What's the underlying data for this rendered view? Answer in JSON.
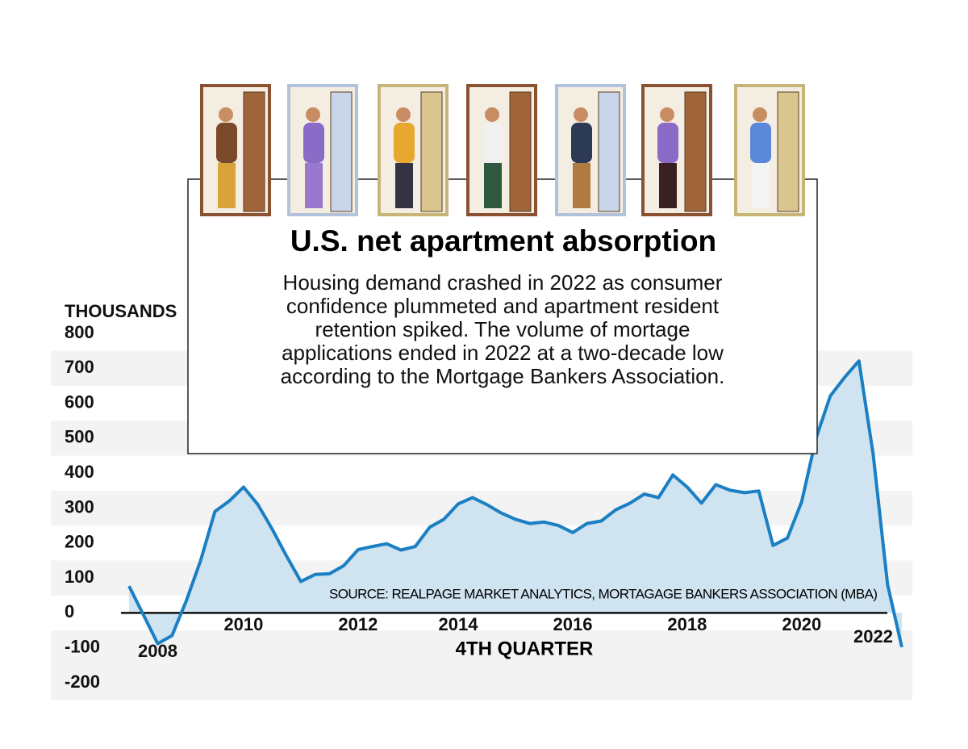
{
  "chart_data": {
    "type": "area",
    "title": "U.S. net apartment absorption",
    "subtitle": "Housing demand crashed in 2022 as consumer confidence plummeted and apartment resident retention spiked. The volume of mortage applications ended in 2022 at a two-decade low according to the Mortgage Bankers Association.",
    "y_label": "THOUSANDS",
    "x_label": "4TH QUARTER",
    "source": "SOURCE: REALPAGE MARKET ANALYTICS, MORTAGAGE BANKERS ASSOCIATION (MBA)",
    "categories": [
      null,
      null,
      "2008",
      null,
      null,
      null,
      null,
      null,
      "2010",
      null,
      null,
      null,
      null,
      null,
      null,
      null,
      "2012",
      null,
      null,
      null,
      null,
      null,
      null,
      "2014",
      null,
      null,
      null,
      null,
      null,
      null,
      null,
      "2016",
      null,
      null,
      null,
      null,
      null,
      null,
      null,
      "2018",
      null,
      null,
      null,
      null,
      null,
      null,
      null,
      "2020",
      null,
      null,
      null,
      null,
      "2022",
      null,
      null
    ],
    "values": [
      77,
      -5,
      -88,
      -65,
      35,
      150,
      290,
      320,
      360,
      310,
      240,
      163,
      90,
      110,
      112,
      135,
      181,
      190,
      198,
      180,
      190,
      245,
      268,
      312,
      330,
      310,
      286,
      268,
      256,
      260,
      250,
      230,
      256,
      263,
      295,
      314,
      340,
      330,
      395,
      360,
      314,
      367,
      351,
      344,
      349,
      193,
      214,
      318,
      500,
      621,
      674,
      721,
      453,
      81,
      -98
    ],
    "color": "#1b7fc3",
    "fill": "#cfe3f1",
    "ylim": [
      -200,
      800
    ],
    "yticks": [
      800,
      700,
      600,
      500,
      400,
      300,
      200,
      100,
      0,
      -100,
      -200
    ]
  }
}
